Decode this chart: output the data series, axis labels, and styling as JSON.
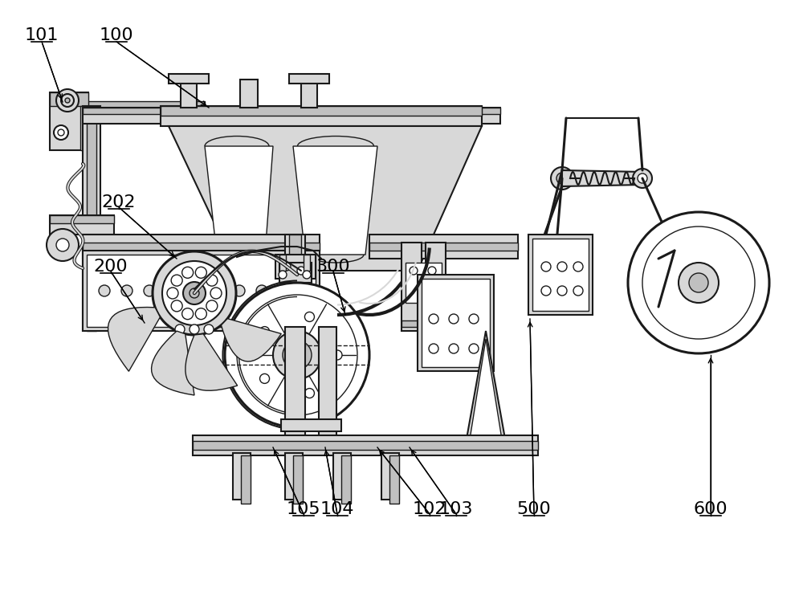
{
  "background_color": "#ffffff",
  "line_color": "#1a1a1a",
  "gray_fill": "#b8b8b8",
  "light_gray": "#d8d8d8",
  "mid_gray": "#c0c0c0",
  "white": "#ffffff"
}
